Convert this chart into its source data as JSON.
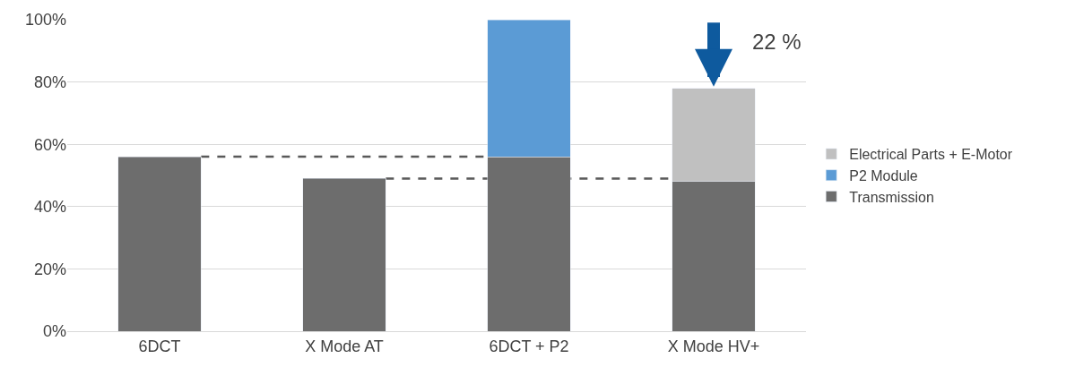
{
  "chart_data": {
    "type": "bar",
    "stacked": true,
    "categories": [
      "6DCT",
      "X Mode AT",
      "6DCT + P2",
      "X Mode HV+"
    ],
    "series": [
      {
        "name": "Transmission",
        "color": "#6d6d6d",
        "values": [
          56,
          49,
          56,
          48
        ]
      },
      {
        "name": "P2 Module",
        "color": "#5b9bd5",
        "values": [
          null,
          null,
          44,
          null
        ]
      },
      {
        "name": "Electrical Parts + E-Motor",
        "color": "#c0c0c0",
        "values": [
          null,
          null,
          null,
          30
        ]
      }
    ],
    "ylim": [
      0,
      100
    ],
    "yticks": [
      {
        "value": 0,
        "label": "0%"
      },
      {
        "value": 20,
        "label": "20%"
      },
      {
        "value": 40,
        "label": "40%"
      },
      {
        "value": 60,
        "label": "60%"
      },
      {
        "value": 80,
        "label": "80%"
      },
      {
        "value": 100,
        "label": "100%"
      }
    ],
    "grid": "y",
    "legend": "right",
    "annotations": [
      "22 %"
    ]
  }
}
